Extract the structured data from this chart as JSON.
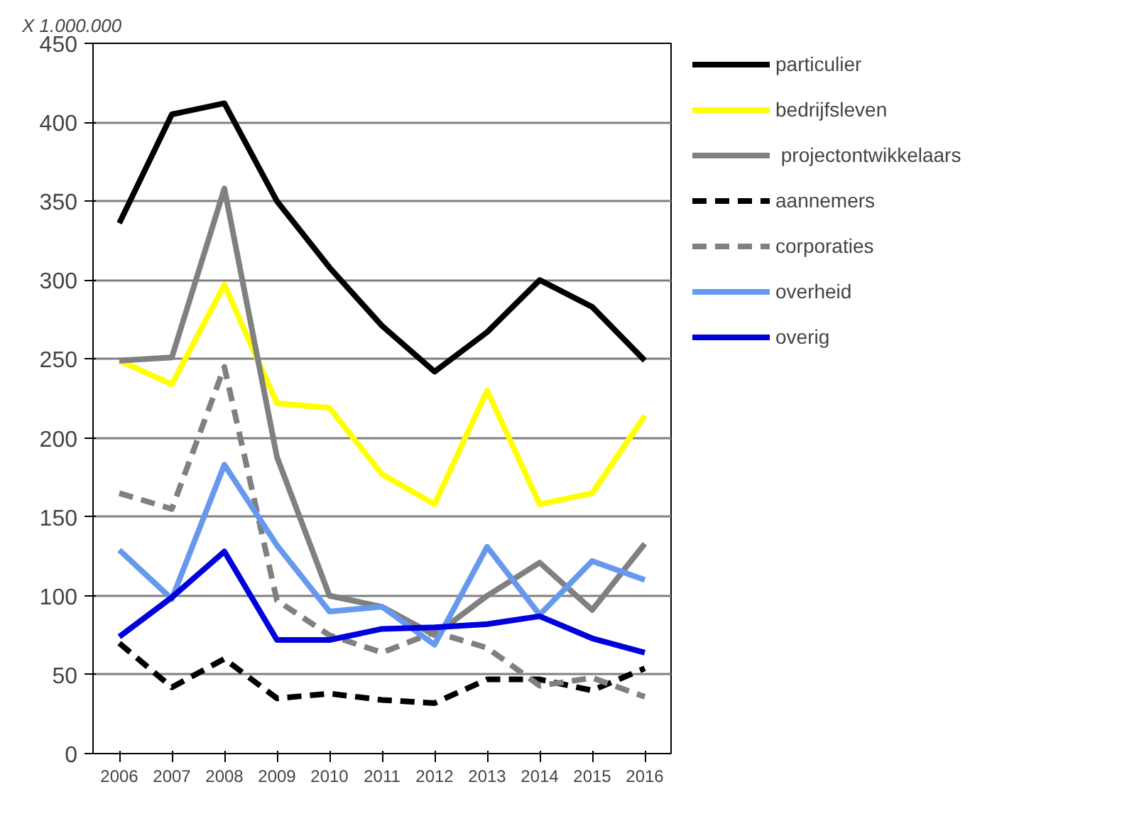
{
  "chart_data": {
    "type": "line",
    "ylabel": "X 1.000.000",
    "categories": [
      "2006",
      "2007",
      "2008",
      "2009",
      "2010",
      "2011",
      "2012",
      "2013",
      "2014",
      "2015",
      "2016"
    ],
    "ylim": [
      0,
      450
    ],
    "yticks": [
      0,
      50,
      100,
      150,
      200,
      250,
      300,
      350,
      400,
      450
    ],
    "grid": "y",
    "legend": "right",
    "line_style": "solid",
    "series": [
      {
        "name": "particulier",
        "color": "#000000",
        "values": [
          336,
          405,
          412,
          350,
          308,
          271,
          242,
          267,
          300,
          283,
          249
        ]
      },
      {
        "name": "bedrijfsleven",
        "color": "#ffff00",
        "values": [
          249,
          234,
          297,
          222,
          219,
          177,
          158,
          230,
          158,
          165,
          214
        ]
      },
      {
        "name": " projectontwikkelaars",
        "color": "#808080",
        "values": [
          249,
          251,
          358,
          188,
          100,
          93,
          75,
          100,
          121,
          91,
          133
        ]
      },
      {
        "name": "aannemers",
        "color": "#000000",
        "line_style": "dashed",
        "values": [
          70,
          42,
          60,
          35,
          38,
          34,
          32,
          47,
          47,
          40,
          54
        ]
      },
      {
        "name": "corporaties",
        "color": "#808080",
        "line_style": "dashed",
        "values": [
          165,
          155,
          245,
          97,
          75,
          64,
          77,
          67,
          43,
          48,
          36
        ]
      },
      {
        "name": "overheid",
        "color": "#6699ee",
        "values": [
          129,
          98,
          183,
          132,
          90,
          93,
          69,
          131,
          88,
          122,
          110
        ]
      },
      {
        "name": "overig",
        "color": "#0000dd",
        "values": [
          74,
          99,
          128,
          72,
          72,
          79,
          80,
          82,
          87,
          73,
          64
        ]
      }
    ]
  }
}
